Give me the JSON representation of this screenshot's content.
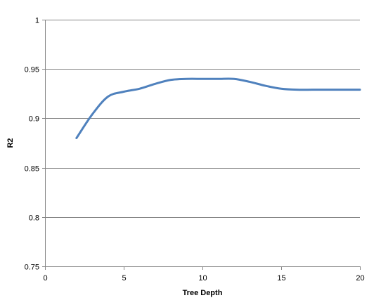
{
  "chart_data": {
    "type": "line",
    "title": "",
    "xlabel": "Tree Depth",
    "ylabel": "R2",
    "xlim": [
      0,
      20
    ],
    "ylim": [
      0.75,
      1
    ],
    "x_ticks": [
      0,
      5,
      10,
      15,
      20
    ],
    "x_tick_labels": [
      "0",
      "5",
      "10",
      "15",
      "20"
    ],
    "y_ticks": [
      0.75,
      0.8,
      0.85,
      0.9,
      0.95,
      1
    ],
    "y_tick_labels": [
      "0.75",
      "0.8",
      "0.85",
      "0.9",
      "0.95",
      "1"
    ],
    "grid": "horizontal",
    "legend": "none",
    "series": [
      {
        "color": "#4F81BD",
        "x": [
          2,
          3,
          4,
          5,
          6,
          7,
          8,
          9,
          10,
          11,
          12,
          13,
          14,
          15,
          16,
          17,
          18,
          19,
          20
        ],
        "y": [
          0.88,
          0.904,
          0.922,
          0.927,
          0.93,
          0.935,
          0.939,
          0.94,
          0.94,
          0.94,
          0.94,
          0.937,
          0.933,
          0.93,
          0.929,
          0.929,
          0.929,
          0.929,
          0.929
        ]
      }
    ]
  }
}
